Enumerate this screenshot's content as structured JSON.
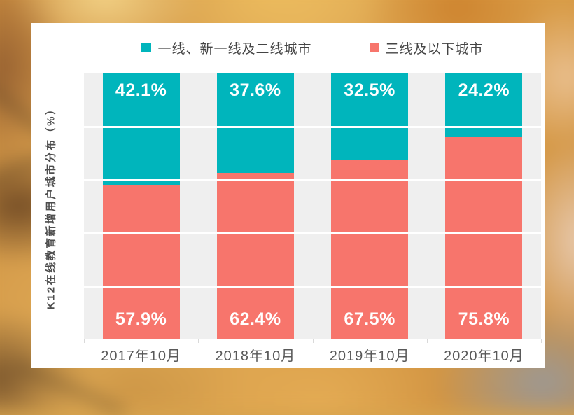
{
  "background": {
    "description": "blurred autumn leaves photo backdrop"
  },
  "card": {
    "background_color": "#ffffff"
  },
  "legend": {
    "items": [
      {
        "label": "一线、新一线及二线城市",
        "color": "#00b5bc"
      },
      {
        "label": "三线及以下城市",
        "color": "#f7756c"
      }
    ]
  },
  "y_axis_label": "K12在线教育新增用户城市分布（%）",
  "chart_data": {
    "type": "bar",
    "stacked": true,
    "orientation": "vertical",
    "title": "",
    "ylabel": "K12在线教育新增用户城市分布（%）",
    "xlabel": "",
    "ylim": [
      0,
      100
    ],
    "categories": [
      "2017年10月",
      "2018年10月",
      "2019年10月",
      "2020年10月"
    ],
    "series": [
      {
        "name": "一线、新一线及二线城市",
        "color": "#00b5bc",
        "values": [
          42.1,
          37.6,
          32.5,
          24.2
        ]
      },
      {
        "name": "三线及以下城市",
        "color": "#f7756c",
        "values": [
          57.9,
          62.4,
          67.5,
          75.8
        ]
      }
    ],
    "value_label_suffix": "%",
    "legend_position": "top",
    "gridlines": {
      "show": true,
      "interval_pct": 20,
      "color": "#ffffff"
    },
    "plot_background": "#efefef",
    "axis_line_color": "#d9d9d9",
    "value_label_color": "#ffffff",
    "category_label_color": "#595959"
  }
}
